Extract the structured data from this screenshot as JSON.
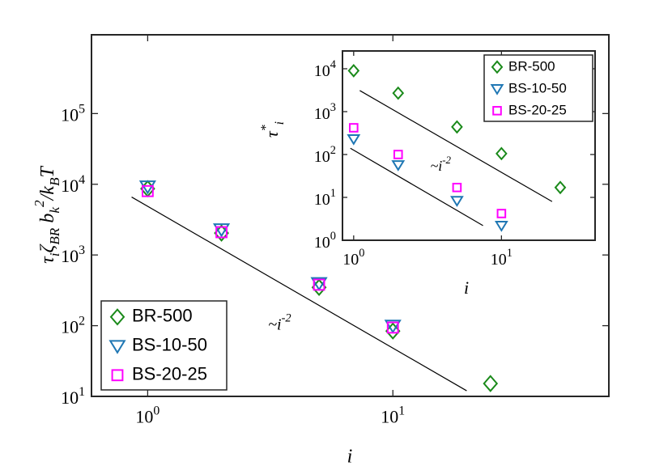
{
  "chart_data": [
    {
      "type": "scatter",
      "xlabel": "i",
      "ylabel": "τ_{i}ζ_{BR} b_{k}^{2}/k_{B}T",
      "log_x": true,
      "log_y": true,
      "legend": "lower left",
      "xlim": [
        0.59,
        76
      ],
      "ylim": [
        10,
        1300000
      ],
      "xticks": [
        {
          "value": 1,
          "label": "10^{0}"
        },
        {
          "value": 10,
          "label": "10^{1}"
        }
      ],
      "yticks": [
        {
          "value": 10,
          "label": "10^{1}"
        },
        {
          "value": 100,
          "label": "10^{2}"
        },
        {
          "value": 1000,
          "label": "10^{3}"
        },
        {
          "value": 10000,
          "label": "10^{4}"
        },
        {
          "value": 100000,
          "label": "10^{5}"
        }
      ],
      "x": [
        1,
        2,
        5,
        10,
        25
      ],
      "series": [
        {
          "name": "BR-500",
          "color": "#1a8a1a",
          "marker": "diamond",
          "values": [
            8650,
            2040,
            348,
            84,
            15.2
          ]
        },
        {
          "name": "BS-10-50",
          "color": "#1f77b4",
          "marker": "triangle-down",
          "values": [
            9300,
            2300,
            400,
            100,
            null
          ]
        },
        {
          "name": "BS-20-25",
          "color": "#ff00ff",
          "marker": "square",
          "values": [
            8000,
            2100,
            380,
            94,
            null
          ]
        }
      ],
      "lines": [
        {
          "color": "#000000",
          "x": [
            0.86,
            20
          ],
          "values": [
            6600,
            12
          ]
        }
      ],
      "annotations": [
        {
          "text": "~i^{-2}",
          "x": 3.1,
          "y": 100
        }
      ]
    },
    {
      "type": "scatter",
      "xlabel": "i",
      "ylabel": "τ^{*}_{i}",
      "log_x": true,
      "log_y": true,
      "legend": "upper right",
      "xlim": [
        0.84,
        43
      ],
      "ylim": [
        1,
        26000
      ],
      "xticks": [
        {
          "value": 1,
          "label": "10^{0}"
        },
        {
          "value": 10,
          "label": "10^{1}"
        }
      ],
      "yticks": [
        {
          "value": 1,
          "label": "10^{0}"
        },
        {
          "value": 10,
          "label": "10^{1}"
        },
        {
          "value": 100,
          "label": "10^{2}"
        },
        {
          "value": 1000,
          "label": "10^{3}"
        },
        {
          "value": 10000,
          "label": "10^{4}"
        }
      ],
      "x": [
        1,
        2,
        5,
        10,
        25
      ],
      "series": [
        {
          "name": "BR-500",
          "color": "#1a8a1a",
          "marker": "diamond",
          "values": [
            9000,
            2700,
            440,
            105,
            17
          ]
        },
        {
          "name": "BS-10-50",
          "color": "#1f77b4",
          "marker": "triangle-down",
          "values": [
            230,
            57,
            8.4,
            2.2,
            null
          ]
        },
        {
          "name": "BS-20-25",
          "color": "#ff00ff",
          "marker": "square",
          "values": [
            420,
            100,
            17,
            4.2,
            null
          ]
        }
      ],
      "lines": [
        {
          "color": "#000000",
          "x": [
            1.1,
            22
          ],
          "values": [
            3100,
            8
          ]
        },
        {
          "color": "#000000",
          "x": [
            0.95,
            7.5
          ],
          "values": [
            140,
            2.2
          ]
        }
      ],
      "annotations": [
        {
          "text": "~i^{-2}",
          "x": 3.3,
          "y": 50
        }
      ]
    }
  ]
}
